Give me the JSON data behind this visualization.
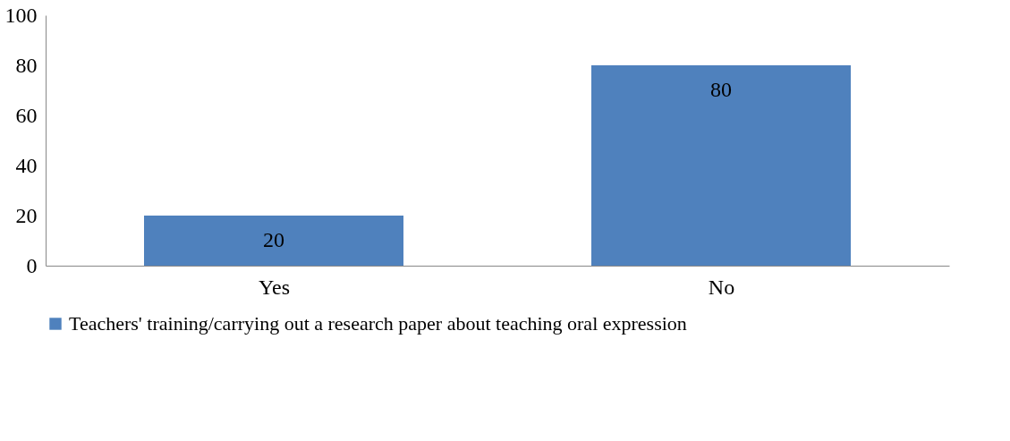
{
  "chart_data": {
    "type": "bar",
    "categories": [
      "Yes",
      "No"
    ],
    "series": [
      {
        "name": "Teachers' training/carrying out a research paper about teaching oral expression",
        "color": "#4f81bd",
        "values": [
          20,
          80
        ]
      }
    ],
    "ylim": [
      0,
      100
    ],
    "yticks": [
      0,
      20,
      40,
      60,
      80,
      100
    ],
    "data_labels": true,
    "grid": false,
    "legend": "bottom"
  }
}
